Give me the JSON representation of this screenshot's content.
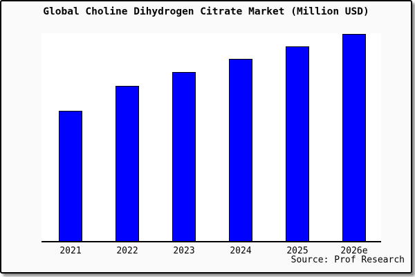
{
  "page": {
    "background": "#ffffff",
    "card_background": "#fafafa",
    "card_border_color": "#000000",
    "card_shadow_color": "#6e6e6e"
  },
  "header": {
    "title": "Global Choline Dihydrogen Citrate Market (Million USD)"
  },
  "footer": {
    "source": "Source: Prof Research"
  },
  "chart_data": {
    "type": "bar",
    "title": "Global Choline Dihydrogen Citrate Market (Million USD)",
    "categories": [
      "2021",
      "2022",
      "2023",
      "2024",
      "2025",
      "2026e"
    ],
    "values": [
      188,
      224,
      244,
      263,
      281,
      299
    ],
    "values_note": "No y-axis scale, gridlines or data labels are shown in the chart; values are relative bar heights in arbitrary units estimated from pixels.",
    "xlabel": "",
    "ylabel": "",
    "ylim": [
      0,
      300
    ],
    "grid": false,
    "legend": false,
    "y_axis_shown": false,
    "bar_color": "#0000ff",
    "bar_border_color": "#000000",
    "plot_background": "#ffffff",
    "axis_line_color": "#000000",
    "source_note": "Source: Prof Research"
  }
}
